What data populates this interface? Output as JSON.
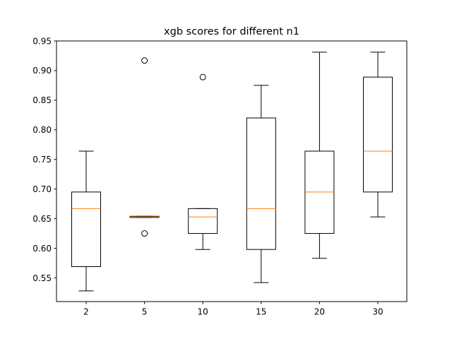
{
  "chart_data": {
    "type": "boxplot",
    "title": "xgb scores for different n1",
    "xlabel": "",
    "ylabel": "",
    "ylim": [
      0.51,
      0.95
    ],
    "yticks": [
      0.55,
      0.6,
      0.65,
      0.7,
      0.75,
      0.8,
      0.85,
      0.9,
      0.95
    ],
    "ytick_labels": [
      "0.55",
      "0.60",
      "0.65",
      "0.70",
      "0.75",
      "0.80",
      "0.85",
      "0.90",
      "0.95"
    ],
    "categories": [
      "2",
      "5",
      "10",
      "15",
      "20",
      "30"
    ],
    "grid": false,
    "boxes": [
      {
        "label": "2",
        "whisker_low": 0.528,
        "q1": 0.569,
        "median": 0.667,
        "q3": 0.695,
        "whisker_high": 0.764,
        "outliers": []
      },
      {
        "label": "5",
        "whisker_low": 0.652,
        "q1": 0.652,
        "median": 0.653,
        "q3": 0.654,
        "whisker_high": 0.654,
        "outliers": [
          0.625,
          0.917
        ]
      },
      {
        "label": "10",
        "whisker_low": 0.598,
        "q1": 0.625,
        "median": 0.653,
        "q3": 0.667,
        "whisker_high": 0.667,
        "outliers": [
          0.889
        ]
      },
      {
        "label": "15",
        "whisker_low": 0.542,
        "q1": 0.598,
        "median": 0.667,
        "q3": 0.82,
        "whisker_high": 0.875,
        "outliers": []
      },
      {
        "label": "20",
        "whisker_low": 0.583,
        "q1": 0.625,
        "median": 0.695,
        "q3": 0.764,
        "whisker_high": 0.931,
        "outliers": []
      },
      {
        "label": "30",
        "whisker_low": 0.653,
        "q1": 0.695,
        "median": 0.764,
        "q3": 0.889,
        "whisker_high": 0.931,
        "outliers": []
      }
    ],
    "colors": {
      "box": "#000000",
      "median": "#ff7f0e",
      "whisker": "#000000",
      "outlier": "#000000",
      "axes": "#000000"
    }
  }
}
